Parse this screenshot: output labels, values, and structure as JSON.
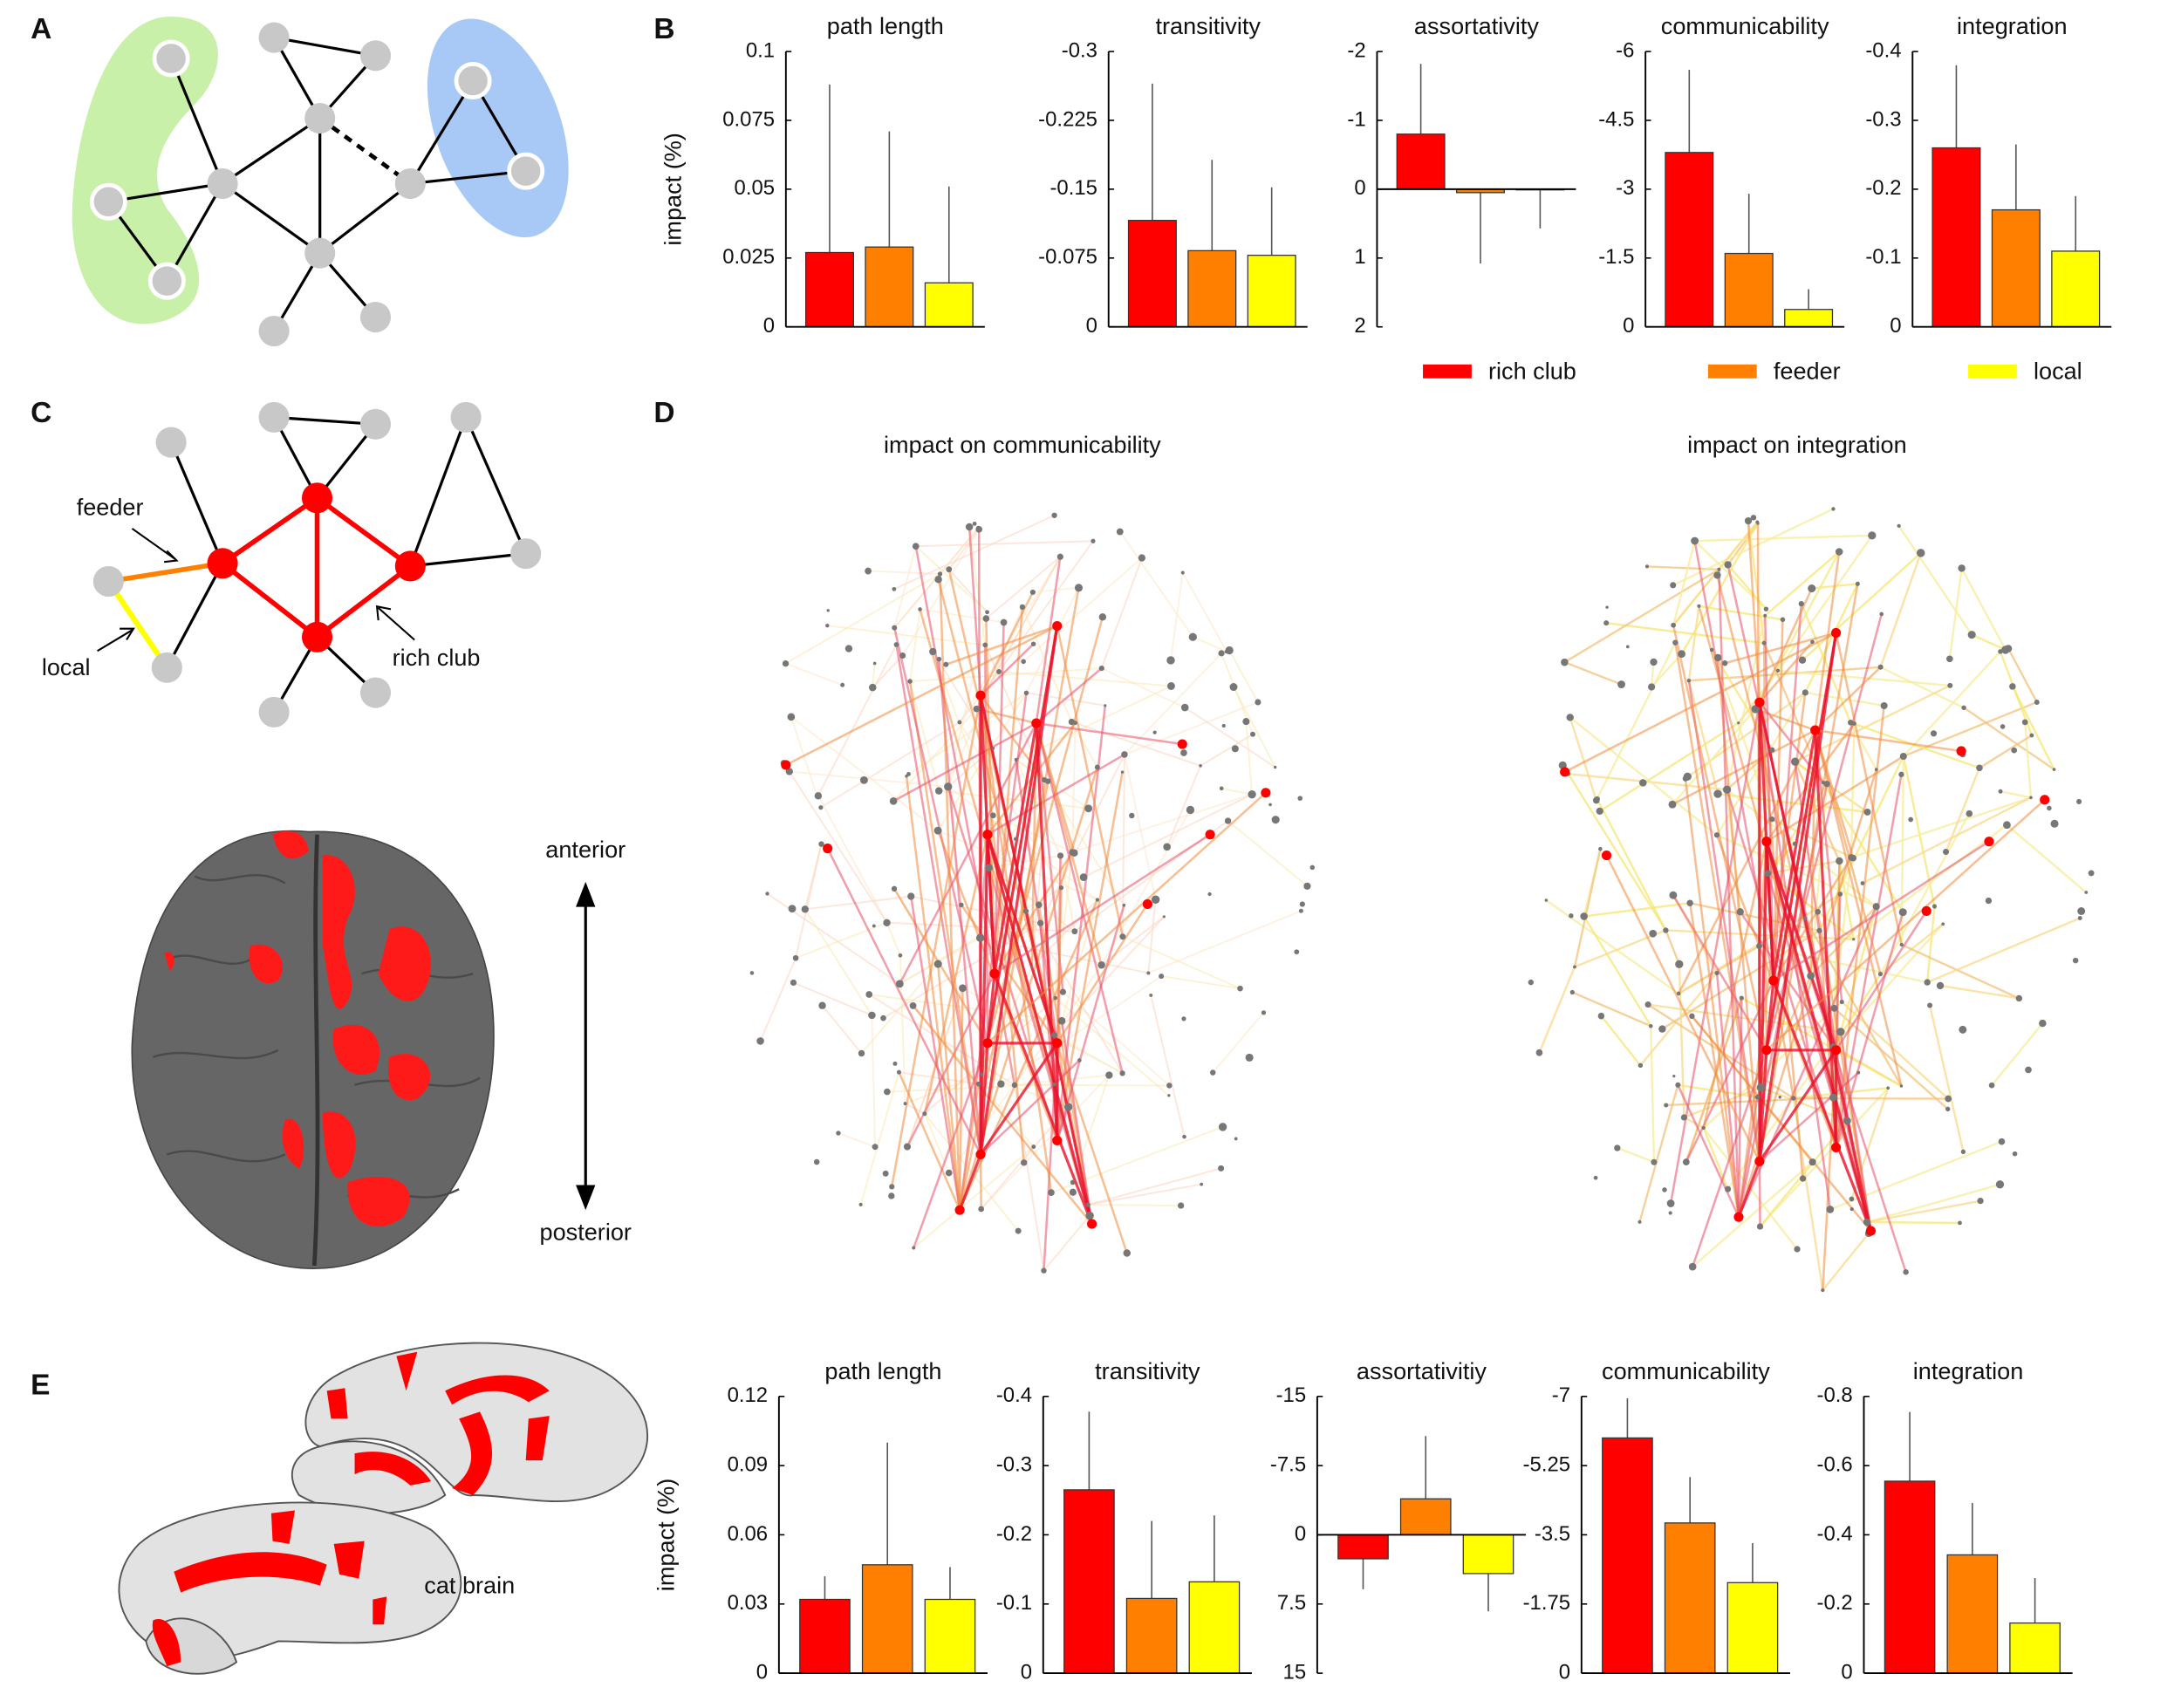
{
  "panels": {
    "a": "A",
    "b": "B",
    "c": "C",
    "d": "D",
    "e": "E"
  },
  "labels": {
    "feeder": "feeder",
    "local": "local",
    "rich_club": "rich club",
    "anterior": "anterior",
    "posterior": "posterior",
    "communicability_map": "impact on communicability",
    "integration_map": "impact on integration",
    "cat": "cat brain"
  },
  "legend": {
    "entries": [
      {
        "name": "rich club",
        "color": "#ff0000"
      },
      {
        "name": "feeder",
        "color": "#ff8000"
      },
      {
        "name": "local",
        "color": "#ffff00"
      }
    ]
  },
  "chart_data": [
    {
      "type": "bar",
      "title": "path length",
      "ylabel": "impact (%)",
      "values": [
        0.027,
        0.029,
        0.016
      ],
      "errors": [
        0.061,
        0.042,
        0.035
      ],
      "colors": [
        "#ff0000",
        "#ff8000",
        "#ffff00"
      ],
      "ylim": [
        0,
        0.1
      ],
      "yticks": [
        0,
        0.025,
        0.05,
        0.075,
        0.1
      ]
    },
    {
      "type": "bar",
      "title": "transitivity",
      "values": [
        -0.116,
        -0.083,
        -0.078
      ],
      "errors": [
        0.149,
        0.099,
        0.074
      ],
      "colors": [
        "#ff0000",
        "#ff8000",
        "#ffff00"
      ],
      "ylim": [
        0,
        -0.3
      ],
      "yticks": [
        0,
        -0.075,
        -0.15,
        -0.225,
        -0.3
      ]
    },
    {
      "type": "bar",
      "title": "assortativity",
      "values": [
        -0.8,
        0.05,
        0.01
      ],
      "errors": [
        1.02,
        1.03,
        0.56
      ],
      "colors": [
        "#ff0000",
        "#ff8000",
        "#ffff00"
      ],
      "ylim": [
        2,
        -2
      ],
      "yticks": [
        2,
        1,
        0,
        -1,
        -2
      ]
    },
    {
      "type": "bar",
      "title": "communicability",
      "values": [
        -3.8,
        -1.6,
        -0.38
      ],
      "errors": [
        1.8,
        1.3,
        0.44
      ],
      "colors": [
        "#ff0000",
        "#ff8000",
        "#ffff00"
      ],
      "ylim": [
        0,
        -6
      ],
      "yticks": [
        0,
        -1.5,
        -3,
        -4.5,
        -6
      ]
    },
    {
      "type": "bar",
      "title": "integration",
      "values": [
        -0.26,
        -0.17,
        -0.11
      ],
      "errors": [
        0.12,
        0.095,
        0.08
      ],
      "colors": [
        "#ff0000",
        "#ff8000",
        "#ffff00"
      ],
      "ylim": [
        0,
        -0.4
      ],
      "yticks": [
        0,
        -0.1,
        -0.2,
        -0.3,
        -0.4
      ]
    },
    {
      "type": "bar",
      "title": "path length",
      "ylabel": "impact (%)",
      "values": [
        0.032,
        0.047,
        0.032
      ],
      "errors": [
        0.01,
        0.053,
        0.014
      ],
      "colors": [
        "#ff0000",
        "#ff8000",
        "#ffff00"
      ],
      "ylim": [
        0,
        0.12
      ],
      "yticks": [
        0,
        0.03,
        0.06,
        0.09,
        0.12
      ]
    },
    {
      "type": "bar",
      "title": "transitivity",
      "values": [
        -0.265,
        -0.108,
        -0.132
      ],
      "errors": [
        0.113,
        0.112,
        0.096
      ],
      "colors": [
        "#ff0000",
        "#ff8000",
        "#ffff00"
      ],
      "ylim": [
        0,
        -0.4
      ],
      "yticks": [
        0,
        -0.1,
        -0.2,
        -0.3,
        -0.4
      ]
    },
    {
      "type": "bar",
      "title": "assortativitiy",
      "values": [
        2.6,
        -3.9,
        4.2
      ],
      "errors": [
        3.3,
        6.8,
        4.1
      ],
      "colors": [
        "#ff0000",
        "#ff8000",
        "#ffff00"
      ],
      "ylim": [
        15,
        -15
      ],
      "yticks": [
        15,
        7.5,
        0,
        -7.5,
        -15
      ]
    },
    {
      "type": "bar",
      "title": "communicability",
      "values": [
        -5.95,
        -3.8,
        -2.29
      ],
      "errors": [
        1.0,
        1.16,
        1.0
      ],
      "colors": [
        "#ff0000",
        "#ff8000",
        "#ffff00"
      ],
      "ylim": [
        0,
        -7
      ],
      "yticks": [
        0,
        -1.75,
        -3.5,
        -5.25,
        -7
      ]
    },
    {
      "type": "bar",
      "title": "integration",
      "values": [
        -0.555,
        -0.342,
        -0.145
      ],
      "errors": [
        0.2,
        0.15,
        0.13
      ],
      "colors": [
        "#ff0000",
        "#ff8000",
        "#ffff00"
      ],
      "ylim": [
        0,
        -0.8
      ],
      "yticks": [
        0,
        -0.2,
        -0.4,
        -0.6,
        -0.8
      ]
    }
  ]
}
